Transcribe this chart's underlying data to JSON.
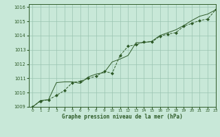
{
  "title": "Graphe pression niveau de la mer (hPa)",
  "background_color": "#c8e8d8",
  "plot_bg_color": "#c8e8d8",
  "grid_color": "#99c4b0",
  "line_color": "#2d5a27",
  "marker_color": "#2d5a27",
  "xlim": [
    -0.5,
    23
  ],
  "ylim": [
    1009,
    1016.2
  ],
  "xticks": [
    0,
    1,
    2,
    3,
    4,
    5,
    6,
    7,
    8,
    9,
    10,
    11,
    12,
    13,
    14,
    15,
    16,
    17,
    18,
    19,
    20,
    21,
    22,
    23
  ],
  "yticks": [
    1009,
    1010,
    1011,
    1012,
    1013,
    1014,
    1015,
    1016
  ],
  "series1_x": [
    0,
    1,
    2,
    3,
    4,
    5,
    6,
    7,
    8,
    9,
    10,
    11,
    12,
    13,
    14,
    15,
    16,
    17,
    18,
    19,
    20,
    21,
    22,
    23
  ],
  "series1_y": [
    1009.0,
    1009.4,
    1009.5,
    1009.8,
    1010.15,
    1010.7,
    1010.8,
    1011.0,
    1011.15,
    1011.5,
    1011.35,
    1012.6,
    1013.25,
    1013.35,
    1013.55,
    1013.55,
    1013.95,
    1014.1,
    1014.2,
    1014.65,
    1014.85,
    1015.05,
    1015.15,
    1015.8
  ],
  "series2_x": [
    0,
    1,
    2,
    3,
    4,
    5,
    6,
    7,
    8,
    9,
    10,
    11,
    12,
    13,
    14,
    15,
    16,
    17,
    18,
    19,
    20,
    21,
    22,
    23
  ],
  "series2_y": [
    1009.0,
    1009.45,
    1009.5,
    1010.7,
    1010.75,
    1010.75,
    1010.65,
    1011.1,
    1011.3,
    1011.4,
    1012.15,
    1012.35,
    1012.6,
    1013.5,
    1013.5,
    1013.6,
    1014.0,
    1014.2,
    1014.4,
    1014.7,
    1015.05,
    1015.35,
    1015.5,
    1015.8
  ]
}
